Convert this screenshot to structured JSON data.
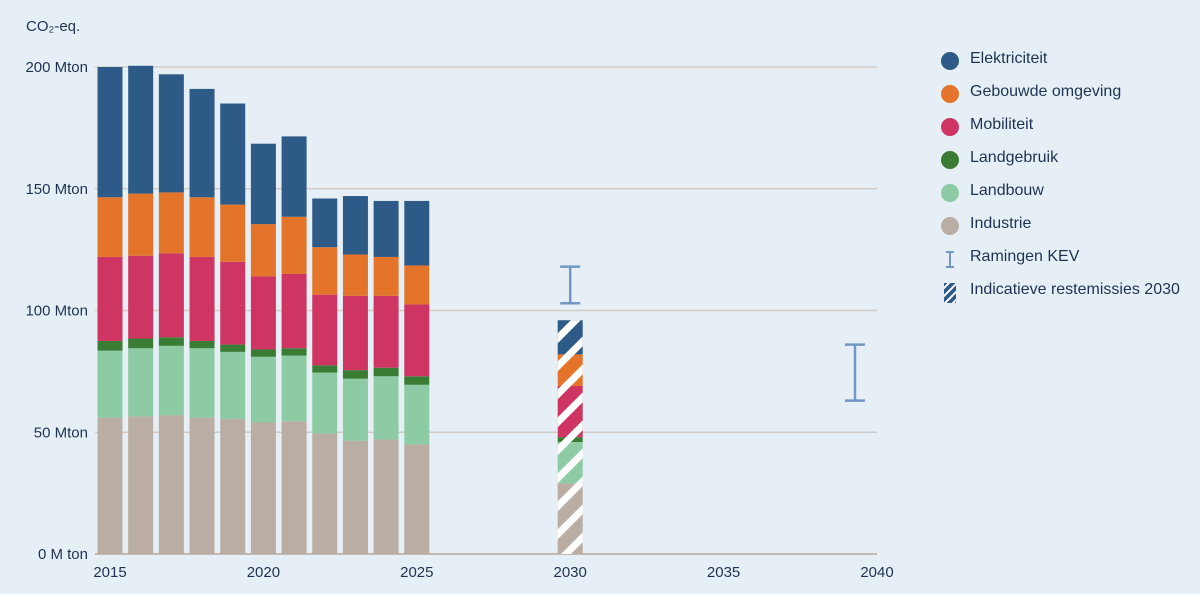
{
  "chart_data": {
    "type": "bar",
    "stacked": true,
    "ylabel": "CO₂-eq.",
    "ylim": [
      0,
      200
    ],
    "yticks": [
      {
        "value": 0,
        "label": "0 M ton"
      },
      {
        "value": 50,
        "label": "50 Mton"
      },
      {
        "value": 100,
        "label": "100 Mton"
      },
      {
        "value": 150,
        "label": "150 Mton"
      },
      {
        "value": 200,
        "label": "200 Mton"
      }
    ],
    "xlim": [
      2015,
      2040
    ],
    "xticks": [
      2015,
      2020,
      2025,
      2030,
      2035,
      2040
    ],
    "grid": true,
    "legend_position": "right",
    "x": [
      2015,
      2016,
      2017,
      2018,
      2019,
      2020,
      2021,
      2022,
      2023,
      2024,
      2025
    ],
    "series": [
      {
        "name": "Industrie",
        "color": "#b9ada4",
        "values": [
          56,
          56.5,
          57,
          56,
          55.5,
          54,
          54.5,
          49.5,
          46.5,
          47,
          45
        ]
      },
      {
        "name": "Landbouw",
        "color": "#8ccba4",
        "values": [
          27.5,
          28,
          28.5,
          28.5,
          27.5,
          27,
          27,
          25,
          25.5,
          26,
          24.5
        ]
      },
      {
        "name": "Landgebruik",
        "color": "#3b7c35",
        "values": [
          4,
          4,
          3.5,
          3,
          3,
          3,
          3,
          3,
          3.5,
          3.5,
          3.5
        ]
      },
      {
        "name": "Mobiliteit",
        "color": "#cf3563",
        "values": [
          34.5,
          34,
          34.5,
          34.5,
          34,
          30,
          30.5,
          29,
          30.5,
          29.5,
          29.5
        ]
      },
      {
        "name": "Gebouwde omgeving",
        "color": "#e37429",
        "values": [
          24.5,
          25.5,
          25,
          24.5,
          23.5,
          21.5,
          23.5,
          19.5,
          17,
          16,
          16
        ]
      },
      {
        "name": "Elektriciteit",
        "color": "#2d5a87",
        "values": [
          53.5,
          52.5,
          48.5,
          44.5,
          41.5,
          33,
          33,
          20,
          24,
          23,
          26.5
        ]
      }
    ],
    "restemissies_2030": {
      "x": 2030,
      "name": "Indicatieve restemissies 2030",
      "segments": [
        {
          "name": "Industrie",
          "value": 29
        },
        {
          "name": "Landbouw",
          "value": 17
        },
        {
          "name": "Landgebruik",
          "value": 2
        },
        {
          "name": "Mobiliteit",
          "value": 21
        },
        {
          "name": "Gebouwde omgeving",
          "value": 13
        },
        {
          "name": "Elektriciteit",
          "value": 14
        }
      ]
    },
    "ramingen_kev": [
      {
        "x": 2030,
        "low": 103,
        "high": 118
      },
      {
        "x": 2040,
        "low": 63,
        "high": 86
      }
    ]
  },
  "legend": [
    {
      "label": "Elektriciteit",
      "icon": "circle",
      "color": "#2d5a87"
    },
    {
      "label": "Gebouwde omgeving",
      "icon": "circle",
      "color": "#e37429"
    },
    {
      "label": "Mobiliteit",
      "icon": "circle",
      "color": "#cf3563"
    },
    {
      "label": "Landgebruik",
      "icon": "circle",
      "color": "#3b7c35"
    },
    {
      "label": "Landbouw",
      "icon": "circle",
      "color": "#8ccba4"
    },
    {
      "label": "Industrie",
      "icon": "circle",
      "color": "#b9ada4"
    },
    {
      "label": "Ramingen KEV",
      "icon": "range",
      "color": "#7197c2"
    },
    {
      "label": "Indicatieve restemissies 2030",
      "icon": "hatch",
      "color": "#2d5a87"
    }
  ],
  "colors": {
    "background": "#e5eff5",
    "grid": "#d3cbc5",
    "text": "#1f3350",
    "range": "#7197c2"
  }
}
